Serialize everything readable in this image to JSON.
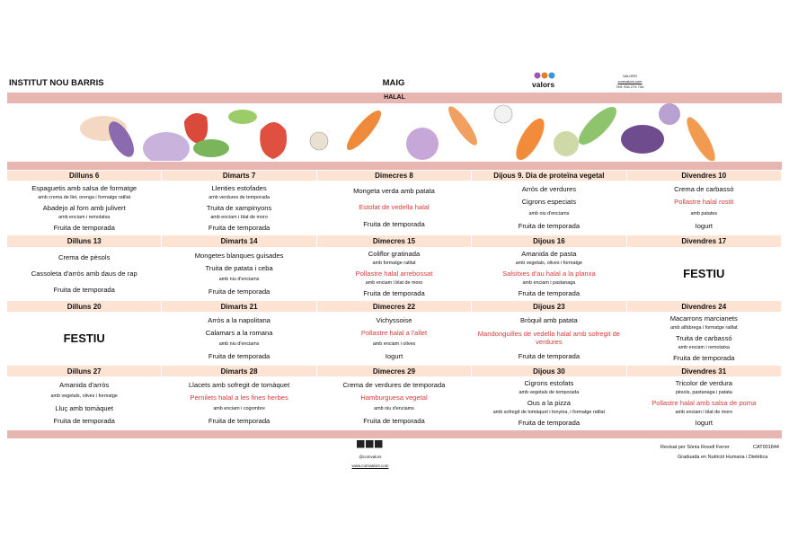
{
  "header": {
    "school": "INSTITUT NOU BARRIS",
    "month": "MAIG",
    "logo": "valors",
    "contact": [
      "VALORS",
      "comvalors.com",
      "Telf. 934 274 734"
    ]
  },
  "band": "HALAL",
  "weeks": [
    {
      "days": [
        {
          "day": "Dilluns 6",
          "lines": [
            {
              "text": "Espaguetis amb salsa de formatge",
              "style": "main"
            },
            {
              "text": "amb crema de llet, orenga i formatge ratllat",
              "style": "note"
            },
            {
              "text": "Abadejo al forn amb julivert",
              "style": "main"
            },
            {
              "text": "amb enciam i remolatxa",
              "style": "note"
            },
            {
              "text": "Fruita de temporada",
              "style": "main"
            }
          ]
        },
        {
          "day": "Dimarts 7",
          "lines": [
            {
              "text": "Llenties estofades",
              "style": "main"
            },
            {
              "text": "amb verdures de temporada",
              "style": "note"
            },
            {
              "text": "Truita de xampinyons",
              "style": "main"
            },
            {
              "text": "amb enciam i blat de moro",
              "style": "note"
            },
            {
              "text": "Fruita de temporada",
              "style": "main"
            }
          ]
        },
        {
          "day": "Dimecres 8",
          "lines": [
            {
              "text": "Mongeta verda amb patata",
              "style": "main"
            },
            {
              "text": "Estofat de vedella halal",
              "style": "halal"
            },
            {
              "text": "Fruita de temporada",
              "style": "main"
            }
          ]
        },
        {
          "day": "Dijous 9. Dia de proteïna vegetal",
          "lines": [
            {
              "text": "Arròs de verdures",
              "style": "main"
            },
            {
              "text": "Cigrons especiats",
              "style": "main"
            },
            {
              "text": "amb niu d'enciams",
              "style": "note"
            },
            {
              "text": "Fruita de temporada",
              "style": "main"
            }
          ]
        },
        {
          "day": "Divendres 10",
          "lines": [
            {
              "text": "Crema de carbassó",
              "style": "main"
            },
            {
              "text": "Pollastre halal rostit",
              "style": "halal"
            },
            {
              "text": "amb patates",
              "style": "note"
            },
            {
              "text": "Iogurt",
              "style": "main"
            }
          ]
        }
      ]
    },
    {
      "days": [
        {
          "day": "Dilluns 13",
          "lines": [
            {
              "text": "Crema de pèsols",
              "style": "main"
            },
            {
              "text": "Cassoleta d'arròs amb daus de rap",
              "style": "main"
            },
            {
              "text": "Fruita de temporada",
              "style": "main"
            }
          ]
        },
        {
          "day": "Dimarts 14",
          "lines": [
            {
              "text": "Mongetes blanques guisades",
              "style": "main"
            },
            {
              "text": "Truita de patata i ceba",
              "style": "main"
            },
            {
              "text": "amb niu d'enciams",
              "style": "note"
            },
            {
              "text": "Fruita de temporada",
              "style": "main"
            }
          ]
        },
        {
          "day": "Dimecres 15",
          "lines": [
            {
              "text": "Coliflor gratinada",
              "style": "main"
            },
            {
              "text": "amb formatge ratllat",
              "style": "note"
            },
            {
              "text": "Pollastre halal arrebossat",
              "style": "halal"
            },
            {
              "text": "amb enciam i  blat de moro",
              "style": "note"
            },
            {
              "text": "Fruita de temporada",
              "style": "main"
            }
          ]
        },
        {
          "day": "Dijous 16",
          "lines": [
            {
              "text": "Amanida de pasta",
              "style": "main"
            },
            {
              "text": "amb vegetals, olives i formatge",
              "style": "note"
            },
            {
              "text": "Salsitxes d'au halal a la planxa",
              "style": "halal"
            },
            {
              "text": "amb enciam i pastanaga",
              "style": "note"
            },
            {
              "text": "Fruita de temporada",
              "style": "main"
            }
          ]
        },
        {
          "day": "Divendres 17",
          "lines": [
            {
              "text": "FESTIU",
              "style": "festiu"
            }
          ]
        }
      ]
    },
    {
      "days": [
        {
          "day": "Dilluns 20",
          "lines": [
            {
              "text": "FESTIU",
              "style": "festiu"
            }
          ]
        },
        {
          "day": "Dimarts 21",
          "lines": [
            {
              "text": "Arròs a la napolitana",
              "style": "main"
            },
            {
              "text": "Calamars a la romana",
              "style": "main"
            },
            {
              "text": "amb niu d'enciams",
              "style": "note"
            },
            {
              "text": "Fruita de temporada",
              "style": "main"
            }
          ]
        },
        {
          "day": "Dimecres 22",
          "lines": [
            {
              "text": "Vichyssoise",
              "style": "main"
            },
            {
              "text": "Pollastre halal a l'allet",
              "style": "halal"
            },
            {
              "text": "amb enciam i olives",
              "style": "note"
            },
            {
              "text": "Iogurt",
              "style": "main"
            }
          ]
        },
        {
          "day": "Dijous 23",
          "lines": [
            {
              "text": "Bròquil amb patata",
              "style": "main"
            },
            {
              "text": "Mandonguilles de vedella halal amb sofregit de verdures",
              "style": "halal"
            },
            {
              "text": "Fruita de temporada",
              "style": "main"
            }
          ]
        },
        {
          "day": "Divendres 24",
          "lines": [
            {
              "text": "Macarrons marcianets",
              "style": "main"
            },
            {
              "text": "amb alfàbrega i formatge ratllat",
              "style": "note"
            },
            {
              "text": "Truita de carbassó",
              "style": "main"
            },
            {
              "text": "amb enciam i remolatxa",
              "style": "note"
            },
            {
              "text": "Fruita de temporada",
              "style": "main"
            }
          ]
        }
      ]
    },
    {
      "days": [
        {
          "day": "Dilluns 27",
          "lines": [
            {
              "text": "Amanida d'arròs",
              "style": "main"
            },
            {
              "text": "amb vegetals, olives i formatge",
              "style": "note"
            },
            {
              "text": "Lluç amb tomàquet",
              "style": "main"
            },
            {
              "text": "Fruita de temporada",
              "style": "main"
            }
          ]
        },
        {
          "day": "Dimarts 28",
          "lines": [
            {
              "text": "Llacets amb sofregit de tomàquet",
              "style": "main"
            },
            {
              "text": "Pernilets halal a les fines herbes",
              "style": "halal"
            },
            {
              "text": "amb enciam i cogombre",
              "style": "note"
            },
            {
              "text": "Fruita de temporada",
              "style": "main"
            }
          ]
        },
        {
          "day": "Dimecres 29",
          "lines": [
            {
              "text": "Crema de verdures de temporada",
              "style": "main"
            },
            {
              "text": "Hamburguesa vegetal",
              "style": "halal"
            },
            {
              "text": "amb niu d'enciams",
              "style": "note"
            },
            {
              "text": "Fruita de temporada",
              "style": "main"
            }
          ]
        },
        {
          "day": "Dijous 30",
          "lines": [
            {
              "text": "Cigrons estofats",
              "style": "main"
            },
            {
              "text": "amb vegetals de temporada",
              "style": "note"
            },
            {
              "text": "Ous a la pizza",
              "style": "main"
            },
            {
              "text": "amb sofregit de tomàquet i tonyina, i formatge ratllat",
              "style": "note"
            },
            {
              "text": "Fruita de temporada",
              "style": "main"
            }
          ]
        },
        {
          "day": "Divendres 31",
          "lines": [
            {
              "text": "Tricolor de verdura",
              "style": "main"
            },
            {
              "text": "pèsols, pastanaga i patata",
              "style": "note"
            },
            {
              "text": "Pollastre halal amb salsa de poma",
              "style": "halal"
            },
            {
              "text": "amb enciam i  blat de moro",
              "style": "note"
            },
            {
              "text": "Iogurt",
              "style": "main"
            }
          ]
        }
      ]
    }
  ],
  "footer": {
    "social": "@comvalors",
    "website": "www.comvalors.com",
    "reviewer": "Revisat per Sònia Rosell Ferrer",
    "code": "CAT001844",
    "degree": "Graduada en Nutrició Humana i Dietètica"
  }
}
